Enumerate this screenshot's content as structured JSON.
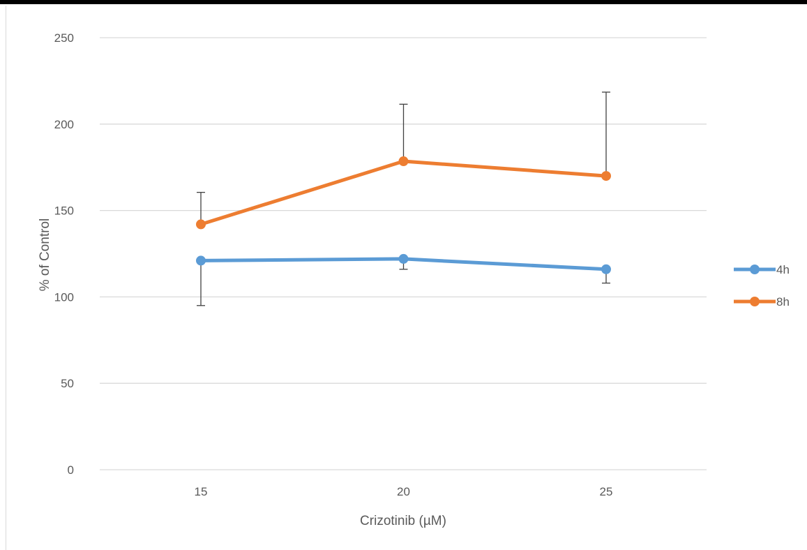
{
  "chart_data": {
    "type": "line",
    "title": "",
    "xlabel": "Crizotinib (µM)",
    "ylabel": "% of Control",
    "categories": [
      "15",
      "20",
      "25"
    ],
    "ylim": [
      0,
      250
    ],
    "yticks": [
      0,
      50,
      100,
      150,
      200,
      250
    ],
    "grid": true,
    "legend_position": "right",
    "series": [
      {
        "name": "4h",
        "color": "#5b9bd5",
        "values": [
          121,
          122,
          116
        ],
        "error_upper": [
          0,
          0,
          0
        ],
        "error_lower": [
          26,
          6,
          8
        ]
      },
      {
        "name": "8h",
        "color": "#ed7d31",
        "values": [
          142,
          178.5,
          170
        ],
        "error_upper": [
          18.5,
          33,
          48.5
        ],
        "error_lower": [
          0,
          0,
          0
        ]
      }
    ]
  }
}
